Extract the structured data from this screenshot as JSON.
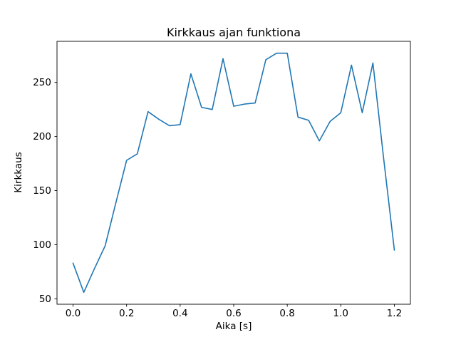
{
  "chart_data": {
    "type": "line",
    "title": "Kirkkaus ajan funktiona",
    "xlabel": "Aika [s]",
    "ylabel": "Kirkkaus",
    "x": [
      0.0,
      0.04,
      0.08,
      0.12,
      0.16,
      0.2,
      0.24,
      0.28,
      0.32,
      0.36,
      0.4,
      0.44,
      0.48,
      0.52,
      0.56,
      0.6,
      0.64,
      0.68,
      0.72,
      0.76,
      0.8,
      0.84,
      0.88,
      0.92,
      0.96,
      1.0,
      1.04,
      1.08,
      1.12,
      1.16,
      1.2
    ],
    "y": [
      83,
      56,
      78,
      99,
      139,
      178,
      184,
      223,
      216,
      210,
      211,
      258,
      227,
      225,
      272,
      228,
      230,
      231,
      271,
      277,
      277,
      218,
      215,
      196,
      214,
      222,
      266,
      222,
      268,
      180,
      95
    ],
    "xlim": [
      -0.06,
      1.26
    ],
    "ylim": [
      45,
      288
    ],
    "x_ticks": [
      0.0,
      0.2,
      0.4,
      0.6,
      0.8,
      1.0,
      1.2
    ],
    "x_tick_labels": [
      "0.0",
      "0.2",
      "0.4",
      "0.6",
      "0.8",
      "1.0",
      "1.2"
    ],
    "y_ticks": [
      50,
      100,
      150,
      200,
      250
    ],
    "y_tick_labels": [
      "50",
      "100",
      "150",
      "200",
      "250"
    ],
    "grid": false,
    "legend": "none",
    "line_color": "#1f77b4",
    "axis_color": "#000000",
    "text_color": "#000000",
    "background_color": "#ffffff"
  }
}
